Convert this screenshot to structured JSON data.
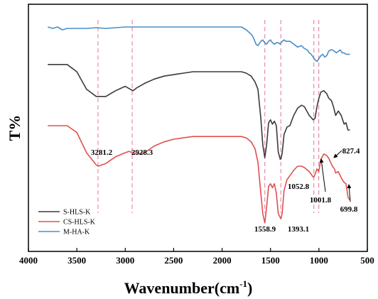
{
  "chart_data": {
    "type": "line",
    "title": "",
    "xlabel": "Wavenumber",
    "xlabel_unit": "cm",
    "xlabel_unit_exponent": "-1",
    "ylabel": "T%",
    "x_ticks": [
      "4000",
      "3500",
      "3000",
      "2500",
      "2000",
      "1500",
      "1000",
      "500"
    ],
    "xlim": [
      4000,
      500
    ],
    "x_reversed": true,
    "y_ticks_shown": false,
    "grid": false,
    "legend_position": "bottom-left",
    "reference_lines": [
      3281.2,
      2928.3,
      1558.9,
      1393.1,
      1052.8,
      1001.8
    ],
    "annotations": [
      {
        "text": "3281.2",
        "x": 3281.2
      },
      {
        "text": "2928.3",
        "x": 2928.3
      },
      {
        "text": "1558.9",
        "x": 1558.9
      },
      {
        "text": "1393.1",
        "x": 1393.1
      },
      {
        "text": "1052.8",
        "x": 1052.8
      },
      {
        "text": "1001.8",
        "x": 1001.8
      },
      {
        "text": "827.4",
        "x": 827.4
      },
      {
        "text": "699.8",
        "x": 699.8
      }
    ],
    "series": [
      {
        "name": "S-HLS-K",
        "color": "#3a3a3a",
        "points": [
          [
            3800,
            0.85
          ],
          [
            3700,
            0.85
          ],
          [
            3600,
            0.85
          ],
          [
            3500,
            0.8
          ],
          [
            3400,
            0.68
          ],
          [
            3300,
            0.63
          ],
          [
            3200,
            0.63
          ],
          [
            3100,
            0.67
          ],
          [
            3000,
            0.7
          ],
          [
            2950,
            0.68
          ],
          [
            2920,
            0.67
          ],
          [
            2880,
            0.69
          ],
          [
            2800,
            0.72
          ],
          [
            2700,
            0.75
          ],
          [
            2600,
            0.77
          ],
          [
            2500,
            0.78
          ],
          [
            2400,
            0.79
          ],
          [
            2300,
            0.8
          ],
          [
            2200,
            0.8
          ],
          [
            2100,
            0.8
          ],
          [
            2000,
            0.8
          ],
          [
            1900,
            0.8
          ],
          [
            1800,
            0.8
          ],
          [
            1750,
            0.79
          ],
          [
            1700,
            0.77
          ],
          [
            1660,
            0.73
          ],
          [
            1630,
            0.68
          ],
          [
            1600,
            0.48
          ],
          [
            1580,
            0.3
          ],
          [
            1558.9,
            0.21
          ],
          [
            1540,
            0.3
          ],
          [
            1520,
            0.45
          ],
          [
            1500,
            0.47
          ],
          [
            1480,
            0.44
          ],
          [
            1460,
            0.46
          ],
          [
            1440,
            0.43
          ],
          [
            1420,
            0.25
          ],
          [
            1400,
            0.2
          ],
          [
            1393.1,
            0.2
          ],
          [
            1380,
            0.24
          ],
          [
            1360,
            0.37
          ],
          [
            1330,
            0.42
          ],
          [
            1300,
            0.43
          ],
          [
            1260,
            0.5
          ],
          [
            1220,
            0.55
          ],
          [
            1180,
            0.57
          ],
          [
            1150,
            0.56
          ],
          [
            1100,
            0.5
          ],
          [
            1060,
            0.47
          ],
          [
            1040,
            0.48
          ],
          [
            1020,
            0.56
          ],
          [
            1000,
            0.62
          ],
          [
            980,
            0.66
          ],
          [
            950,
            0.67
          ],
          [
            920,
            0.65
          ],
          [
            900,
            0.62
          ],
          [
            870,
            0.6
          ],
          [
            850,
            0.56
          ],
          [
            827.4,
            0.5
          ],
          [
            800,
            0.53
          ],
          [
            770,
            0.5
          ],
          [
            740,
            0.44
          ],
          [
            720,
            0.45
          ],
          [
            700,
            0.4
          ],
          [
            680,
            0.4
          ]
        ]
      },
      {
        "name": "CS-HLS-K",
        "color": "#e05050",
        "points": [
          [
            3800,
            0.7
          ],
          [
            3700,
            0.7
          ],
          [
            3600,
            0.7
          ],
          [
            3500,
            0.65
          ],
          [
            3400,
            0.5
          ],
          [
            3300,
            0.41
          ],
          [
            3281.2,
            0.4
          ],
          [
            3200,
            0.42
          ],
          [
            3100,
            0.47
          ],
          [
            3000,
            0.5
          ],
          [
            2960,
            0.51
          ],
          [
            2928.3,
            0.5
          ],
          [
            2880,
            0.49
          ],
          [
            2800,
            0.5
          ],
          [
            2700,
            0.55
          ],
          [
            2600,
            0.58
          ],
          [
            2500,
            0.6
          ],
          [
            2400,
            0.61
          ],
          [
            2300,
            0.62
          ],
          [
            2200,
            0.62
          ],
          [
            2100,
            0.62
          ],
          [
            2000,
            0.62
          ],
          [
            1900,
            0.62
          ],
          [
            1800,
            0.62
          ],
          [
            1750,
            0.61
          ],
          [
            1700,
            0.58
          ],
          [
            1660,
            0.53
          ],
          [
            1630,
            0.43
          ],
          [
            1600,
            0.2
          ],
          [
            1580,
            0.05
          ],
          [
            1558.9,
            -0.02
          ],
          [
            1540,
            0.1
          ],
          [
            1520,
            0.25
          ],
          [
            1500,
            0.27
          ],
          [
            1480,
            0.24
          ],
          [
            1460,
            0.27
          ],
          [
            1440,
            0.2
          ],
          [
            1420,
            0.05
          ],
          [
            1400,
            0.02
          ],
          [
            1393.1,
            0.01
          ],
          [
            1380,
            0.05
          ],
          [
            1360,
            0.22
          ],
          [
            1330,
            0.3
          ],
          [
            1300,
            0.33
          ],
          [
            1260,
            0.37
          ],
          [
            1220,
            0.4
          ],
          [
            1180,
            0.4
          ],
          [
            1150,
            0.39
          ],
          [
            1100,
            0.36
          ],
          [
            1060,
            0.32
          ],
          [
            1052.8,
            0.32
          ],
          [
            1040,
            0.34
          ],
          [
            1020,
            0.38
          ],
          [
            1001.8,
            0.36
          ],
          [
            980,
            0.45
          ],
          [
            950,
            0.49
          ],
          [
            920,
            0.48
          ],
          [
            900,
            0.46
          ],
          [
            880,
            0.43
          ],
          [
            860,
            0.4
          ],
          [
            840,
            0.38
          ],
          [
            827.4,
            0.35
          ],
          [
            800,
            0.36
          ],
          [
            780,
            0.33
          ],
          [
            760,
            0.3
          ],
          [
            740,
            0.28
          ],
          [
            720,
            0.27
          ],
          [
            699.8,
            0.17
          ],
          [
            680,
            0.15
          ]
        ]
      },
      {
        "name": "M-HA-K",
        "color": "#4a8ec8",
        "points": [
          [
            3800,
            1.0
          ],
          [
            3750,
            0.99
          ],
          [
            3700,
            1.0
          ],
          [
            3650,
            0.98
          ],
          [
            3600,
            0.99
          ],
          [
            3500,
            0.99
          ],
          [
            3400,
            0.99
          ],
          [
            3300,
            0.995
          ],
          [
            3200,
            0.99
          ],
          [
            3100,
            0.995
          ],
          [
            3000,
            1.0
          ],
          [
            2900,
            1.0
          ],
          [
            2800,
            1.0
          ],
          [
            2700,
            1.0
          ],
          [
            2600,
            1.0
          ],
          [
            2500,
            1.0
          ],
          [
            2400,
            1.0
          ],
          [
            2300,
            1.0
          ],
          [
            2200,
            1.0
          ],
          [
            2100,
            1.0
          ],
          [
            2000,
            1.0
          ],
          [
            1900,
            1.0
          ],
          [
            1800,
            1.0
          ],
          [
            1750,
            0.98
          ],
          [
            1700,
            0.95
          ],
          [
            1680,
            0.93
          ],
          [
            1650,
            0.88
          ],
          [
            1630,
            0.87
          ],
          [
            1600,
            0.9
          ],
          [
            1580,
            0.91
          ],
          [
            1560,
            0.89
          ],
          [
            1540,
            0.88
          ],
          [
            1520,
            0.9
          ],
          [
            1500,
            0.91
          ],
          [
            1480,
            0.89
          ],
          [
            1460,
            0.88
          ],
          [
            1440,
            0.89
          ],
          [
            1420,
            0.89
          ],
          [
            1400,
            0.88
          ],
          [
            1380,
            0.9
          ],
          [
            1360,
            0.91
          ],
          [
            1340,
            0.9
          ],
          [
            1300,
            0.9
          ],
          [
            1260,
            0.88
          ],
          [
            1220,
            0.86
          ],
          [
            1180,
            0.87
          ],
          [
            1150,
            0.85
          ],
          [
            1120,
            0.84
          ],
          [
            1100,
            0.82
          ],
          [
            1080,
            0.81
          ],
          [
            1060,
            0.79
          ],
          [
            1040,
            0.77
          ],
          [
            1020,
            0.76
          ],
          [
            1000,
            0.78
          ],
          [
            980,
            0.8
          ],
          [
            960,
            0.81
          ],
          [
            940,
            0.79
          ],
          [
            920,
            0.8
          ],
          [
            900,
            0.83
          ],
          [
            880,
            0.84
          ],
          [
            860,
            0.84
          ],
          [
            840,
            0.83
          ],
          [
            820,
            0.82
          ],
          [
            800,
            0.83
          ],
          [
            780,
            0.84
          ],
          [
            760,
            0.82
          ],
          [
            740,
            0.82
          ],
          [
            720,
            0.81
          ],
          [
            700,
            0.81
          ],
          [
            680,
            0.81
          ]
        ]
      }
    ]
  }
}
